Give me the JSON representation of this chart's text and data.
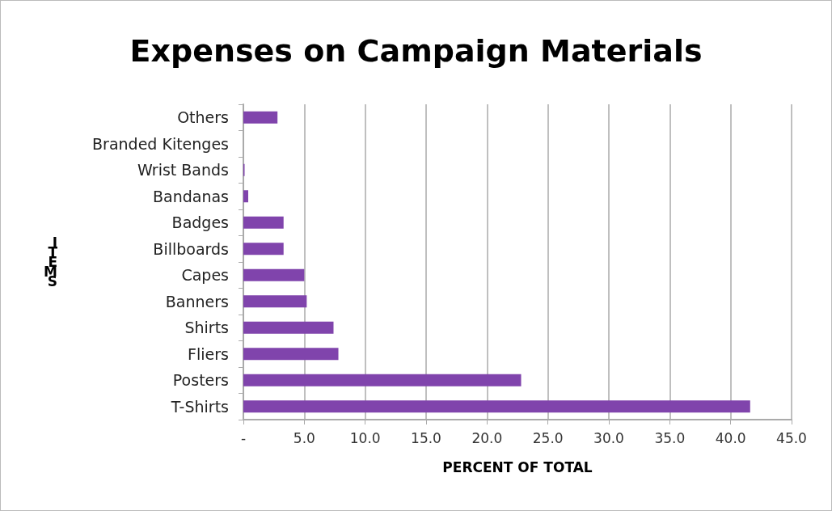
{
  "chart_data": {
    "type": "bar",
    "orientation": "horizontal",
    "title": "Expenses on Campaign Materials",
    "xlabel": "PERCENT OF TOTAL",
    "ylabel": "ITEMS",
    "categories": [
      "Others",
      "Branded Kitenges",
      "Wrist Bands",
      "Bandanas",
      "Badges",
      "Billboards",
      "Capes",
      "Banners",
      "Shirts",
      "Fliers",
      "Posters",
      "T-Shirts"
    ],
    "values": [
      2.8,
      0,
      0.1,
      0.4,
      3.3,
      3.3,
      5.0,
      5.2,
      7.4,
      7.8,
      22.8,
      41.6
    ],
    "color": "#8044ac",
    "xlim": [
      0,
      45
    ],
    "xticks": [
      {
        "value": 0,
        "label": "-"
      },
      {
        "value": 5,
        "label": "5.0"
      },
      {
        "value": 10,
        "label": "10.0"
      },
      {
        "value": 15,
        "label": "15.0"
      },
      {
        "value": 20,
        "label": "20.0"
      },
      {
        "value": 25,
        "label": "25.0"
      },
      {
        "value": 30,
        "label": "30.0"
      },
      {
        "value": 35,
        "label": "35.0"
      },
      {
        "value": 40,
        "label": "40.0"
      },
      {
        "value": 45,
        "label": "45.0"
      }
    ],
    "grid": "x"
  }
}
